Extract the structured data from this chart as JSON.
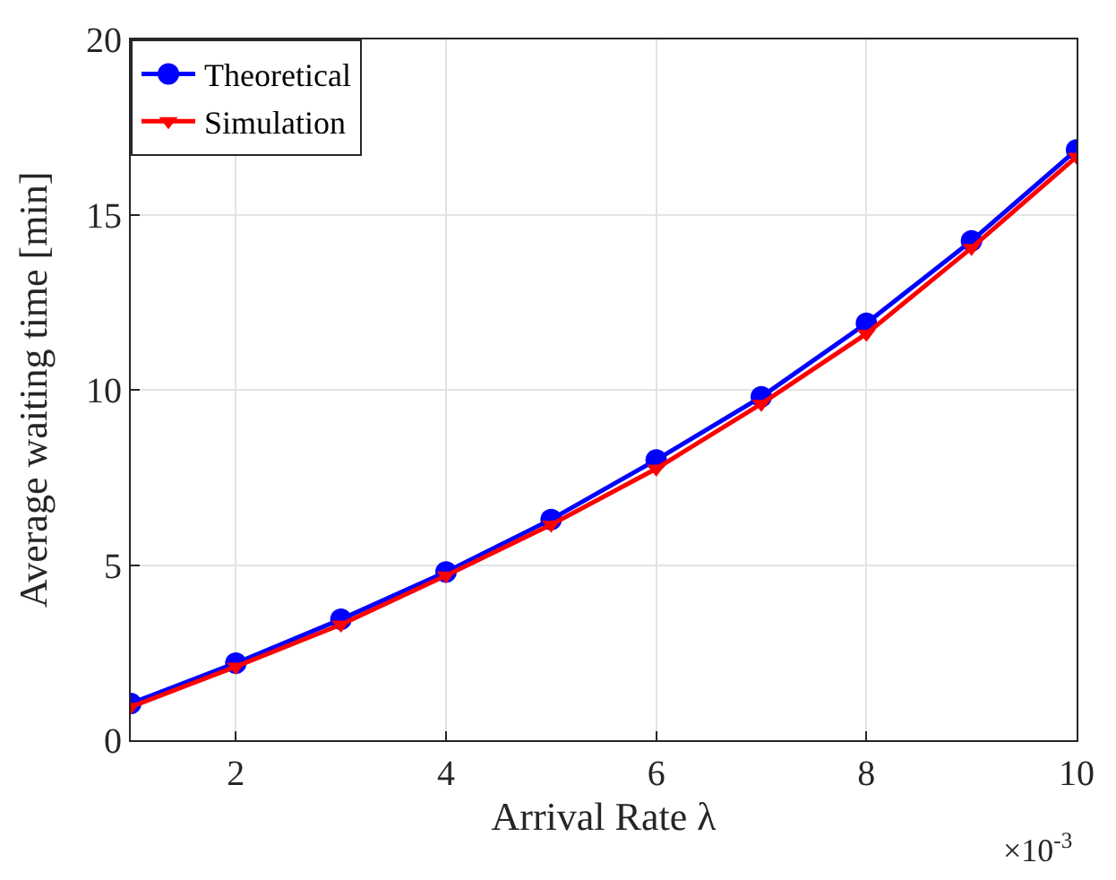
{
  "chart_data": {
    "type": "line",
    "xlabel": "Arrival Rate λ",
    "ylabel": "Average waiting time [min]",
    "x": [
      1,
      2,
      3,
      4,
      5,
      6,
      7,
      8,
      9,
      10
    ],
    "series": [
      {
        "name": "Theoretical",
        "color": "#0000ff",
        "marker": "circle",
        "values": [
          1.05,
          2.2,
          3.45,
          4.8,
          6.3,
          8.0,
          9.8,
          11.9,
          14.25,
          16.85
        ]
      },
      {
        "name": "Simulation",
        "color": "#ff0000",
        "marker": "triangle",
        "values": [
          0.95,
          2.1,
          3.3,
          4.7,
          6.15,
          7.75,
          9.6,
          11.6,
          14.05,
          16.65
        ]
      }
    ],
    "xlim": [
      1,
      10
    ],
    "xticks": [
      2,
      4,
      6,
      8,
      10
    ],
    "ylim": [
      0,
      20
    ],
    "yticks": [
      0,
      5,
      10,
      15,
      20
    ],
    "annotations": [
      "×10$^{-3}$"
    ],
    "grid": true,
    "legend": "top left",
    "line_style": "solid"
  }
}
